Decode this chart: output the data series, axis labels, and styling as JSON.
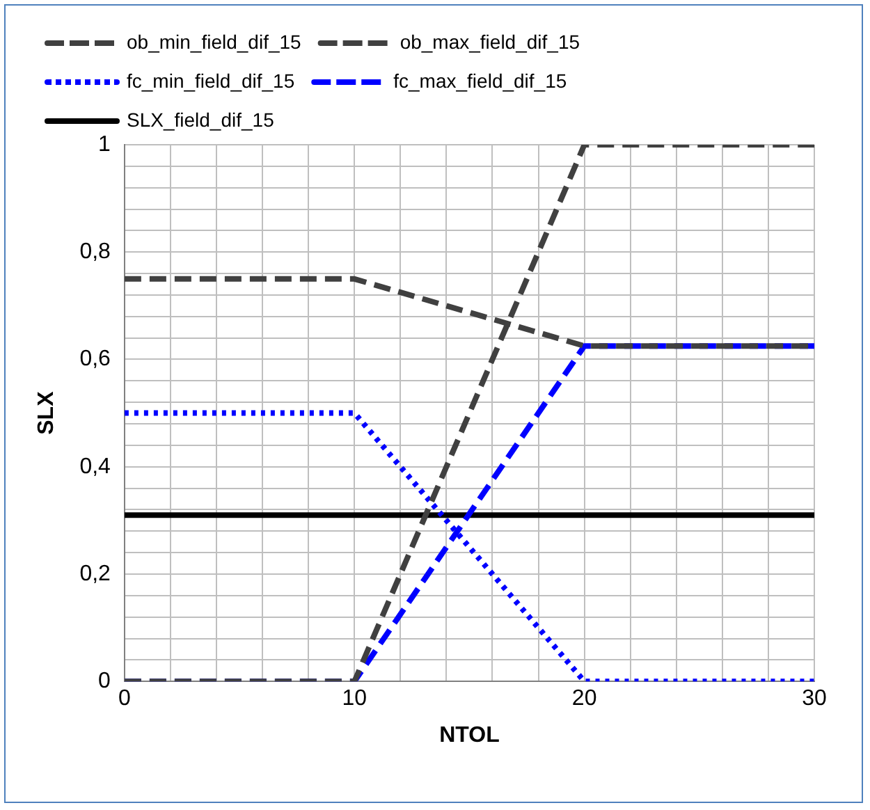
{
  "chart_data": {
    "type": "line",
    "xlabel": "NTOL",
    "ylabel": "SLX",
    "xlim": [
      0,
      30
    ],
    "ylim": [
      0,
      1
    ],
    "xticks": [
      0,
      {
        "value": 2,
        "label": null
      },
      {
        "value": 4,
        "label": null
      },
      {
        "value": 6,
        "label": null
      },
      {
        "value": 8,
        "label": null
      },
      10,
      {
        "value": 12,
        "label": null
      },
      {
        "value": 14,
        "label": null
      },
      {
        "value": 16,
        "label": null
      },
      {
        "value": 18,
        "label": null
      },
      20,
      {
        "value": 22,
        "label": null
      },
      {
        "value": 24,
        "label": null
      },
      {
        "value": 26,
        "label": null
      },
      {
        "value": 28,
        "label": null
      },
      30
    ],
    "yticks": [
      0,
      {
        "value": 0.04,
        "label": null
      },
      {
        "value": 0.08,
        "label": null
      },
      {
        "value": 0.12,
        "label": null
      },
      {
        "value": 0.16,
        "label": null
      },
      {
        "value": 0.2,
        "label": "0,2"
      },
      {
        "value": 0.24,
        "label": null
      },
      {
        "value": 0.28,
        "label": null
      },
      {
        "value": 0.32,
        "label": null
      },
      {
        "value": 0.36,
        "label": null
      },
      {
        "value": 0.4,
        "label": "0,4"
      },
      {
        "value": 0.44,
        "label": null
      },
      {
        "value": 0.48,
        "label": null
      },
      {
        "value": 0.52,
        "label": null
      },
      {
        "value": 0.56,
        "label": null
      },
      {
        "value": 0.6,
        "label": "0,6"
      },
      {
        "value": 0.64,
        "label": null
      },
      {
        "value": 0.68,
        "label": null
      },
      {
        "value": 0.72,
        "label": null
      },
      {
        "value": 0.76,
        "label": null
      },
      {
        "value": 0.8,
        "label": "0,8"
      },
      {
        "value": 0.84,
        "label": null
      },
      {
        "value": 0.88,
        "label": null
      },
      {
        "value": 0.92,
        "label": null
      },
      {
        "value": 0.96,
        "label": null
      },
      1
    ],
    "grid": true,
    "legend": "top",
    "marker": "none",
    "series": [
      {
        "name": "ob_min_field_dif_15",
        "color": "#404040",
        "line_style": "dashed",
        "x": [
          0,
          10,
          20,
          30
        ],
        "values": [
          0,
          0,
          1,
          1
        ]
      },
      {
        "name": "ob_max_field_dif_15",
        "color": "#404040",
        "line_style": "dashed",
        "x": [
          0,
          10,
          20,
          30
        ],
        "values": [
          0.75,
          0.75,
          0.625,
          0.625
        ]
      },
      {
        "name": "fc_min_field_dif_15",
        "color": "#0000ff",
        "line_style": "dotted",
        "x": [
          0,
          10,
          20,
          30
        ],
        "values": [
          0.5,
          0.5,
          0,
          0
        ]
      },
      {
        "name": "fc_max_field_dif_15",
        "color": "#0000ff",
        "line_style": "dashed",
        "x": [
          0,
          10,
          20,
          30
        ],
        "values": [
          0,
          0,
          0.625,
          0.625
        ]
      },
      {
        "name": "SLX_field_dif_15",
        "color": "#000000",
        "line_style": "solid",
        "x": [
          0,
          30
        ],
        "values": [
          0.31,
          0.31
        ]
      }
    ]
  }
}
